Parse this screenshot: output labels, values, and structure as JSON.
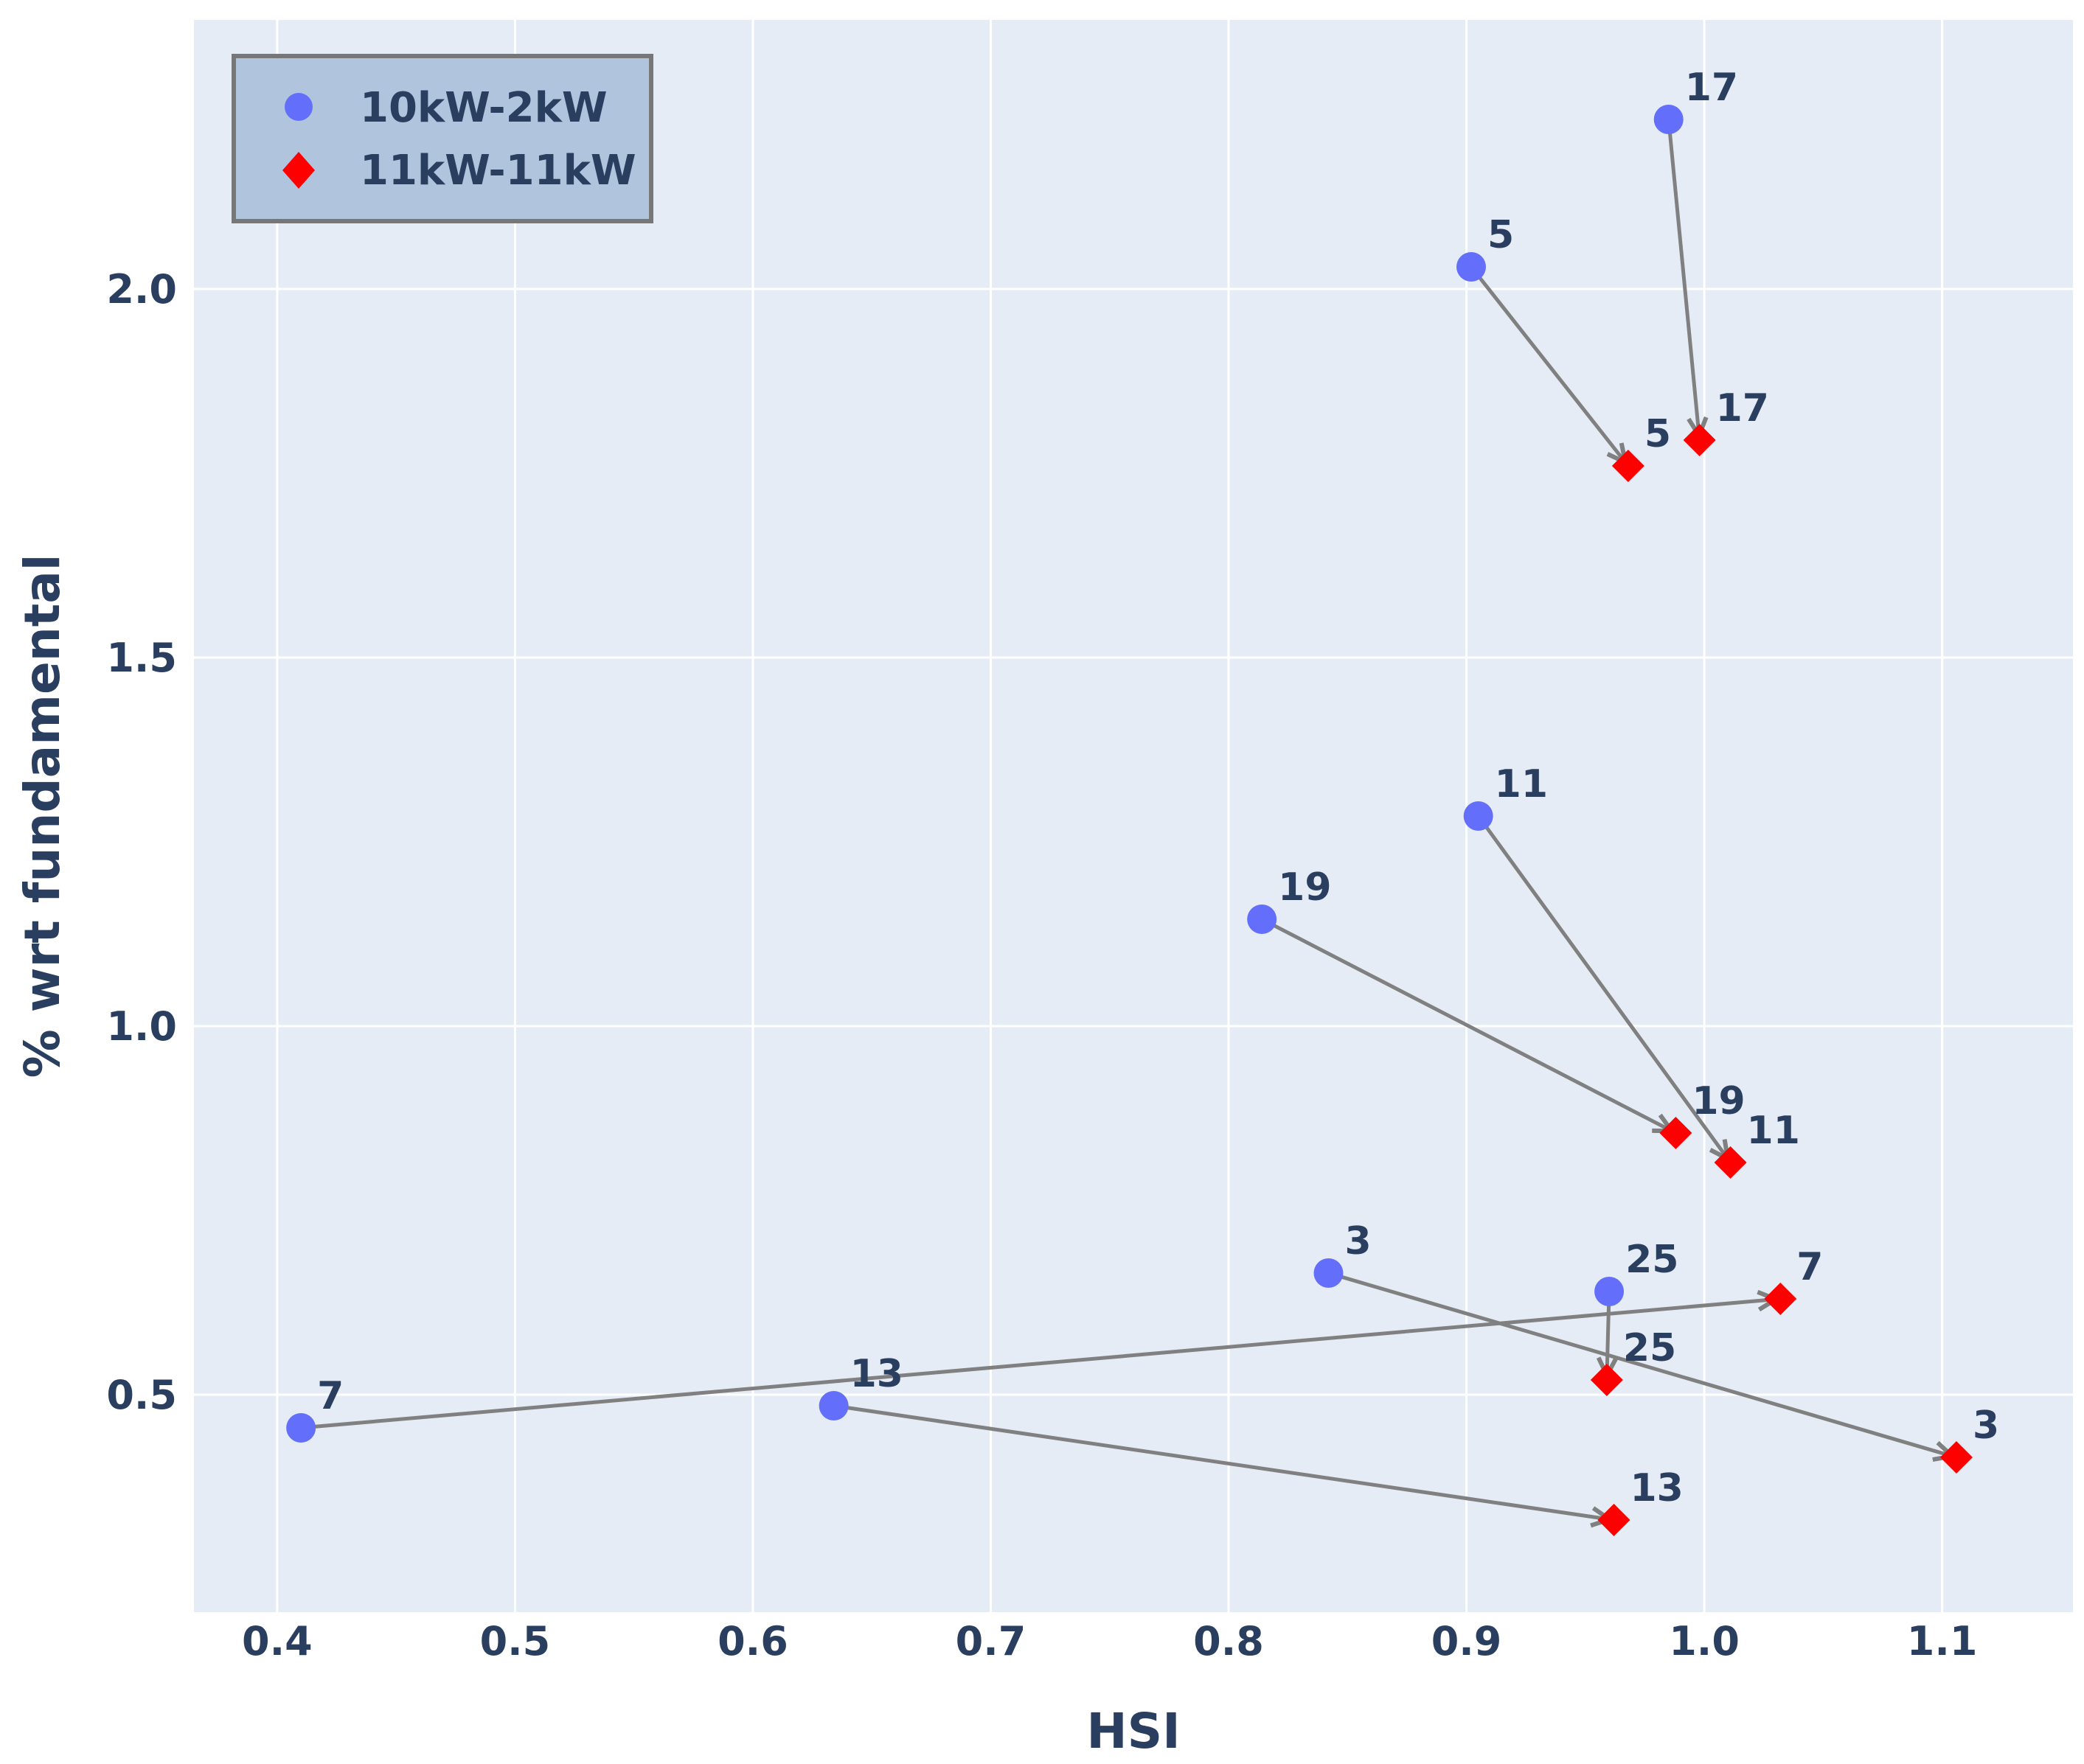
{
  "chart_data": {
    "type": "scatter",
    "xlabel": "HSI",
    "ylabel": "% wrt fundamental",
    "xlim": [
      0.365,
      1.155
    ],
    "ylim": [
      0.205,
      2.365
    ],
    "x_ticks": [
      "0.4",
      "0.5",
      "0.6",
      "0.7",
      "0.8",
      "0.9",
      "1.0",
      "1.1"
    ],
    "y_ticks": [
      "0.5",
      "1.0",
      "1.5",
      "2.0"
    ],
    "grid": true,
    "legend_position": "top-left",
    "series": [
      {
        "name": "10kW-2kW",
        "marker": "circle",
        "color": "#636efa",
        "points": [
          {
            "label": "17",
            "x": 0.985,
            "y": 2.23
          },
          {
            "label": "5",
            "x": 0.902,
            "y": 2.03
          },
          {
            "label": "11",
            "x": 0.905,
            "y": 1.285
          },
          {
            "label": "19",
            "x": 0.814,
            "y": 1.145
          },
          {
            "label": "3",
            "x": 0.842,
            "y": 0.665
          },
          {
            "label": "25",
            "x": 0.96,
            "y": 0.64
          },
          {
            "label": "7",
            "x": 0.41,
            "y": 0.455
          },
          {
            "label": "13",
            "x": 0.634,
            "y": 0.485
          }
        ]
      },
      {
        "name": "11kW-11kW",
        "marker": "diamond",
        "color": "#ff0000",
        "points": [
          {
            "label": "17",
            "x": 0.998,
            "y": 1.795
          },
          {
            "label": "5",
            "x": 0.968,
            "y": 1.76
          },
          {
            "label": "19",
            "x": 0.988,
            "y": 0.855
          },
          {
            "label": "11",
            "x": 1.011,
            "y": 0.815
          },
          {
            "label": "7",
            "x": 1.032,
            "y": 0.63
          },
          {
            "label": "25",
            "x": 0.959,
            "y": 0.52
          },
          {
            "label": "3",
            "x": 1.106,
            "y": 0.415
          },
          {
            "label": "13",
            "x": 0.962,
            "y": 0.33
          }
        ]
      }
    ],
    "arrows": [
      {
        "label": "17",
        "from": [
          0.985,
          2.23
        ],
        "to": [
          0.998,
          1.795
        ]
      },
      {
        "label": "5",
        "from": [
          0.902,
          2.03
        ],
        "to": [
          0.968,
          1.76
        ]
      },
      {
        "label": "11",
        "from": [
          0.905,
          1.285
        ],
        "to": [
          1.011,
          0.815
        ]
      },
      {
        "label": "19",
        "from": [
          0.814,
          1.145
        ],
        "to": [
          0.988,
          0.855
        ]
      },
      {
        "label": "3",
        "from": [
          0.842,
          0.665
        ],
        "to": [
          1.106,
          0.415
        ]
      },
      {
        "label": "25",
        "from": [
          0.96,
          0.64
        ],
        "to": [
          0.959,
          0.52
        ]
      },
      {
        "label": "7",
        "from": [
          0.41,
          0.455
        ],
        "to": [
          1.032,
          0.63
        ]
      },
      {
        "label": "13",
        "from": [
          0.634,
          0.485
        ],
        "to": [
          0.962,
          0.33
        ]
      }
    ],
    "colors": {
      "plot_bg": "#e5ecf6",
      "grid": "#ffffff",
      "arrow": "#808080",
      "legend_bg": "#b0c4de",
      "legend_border": "#777777",
      "text": "#2a3f5f"
    }
  }
}
